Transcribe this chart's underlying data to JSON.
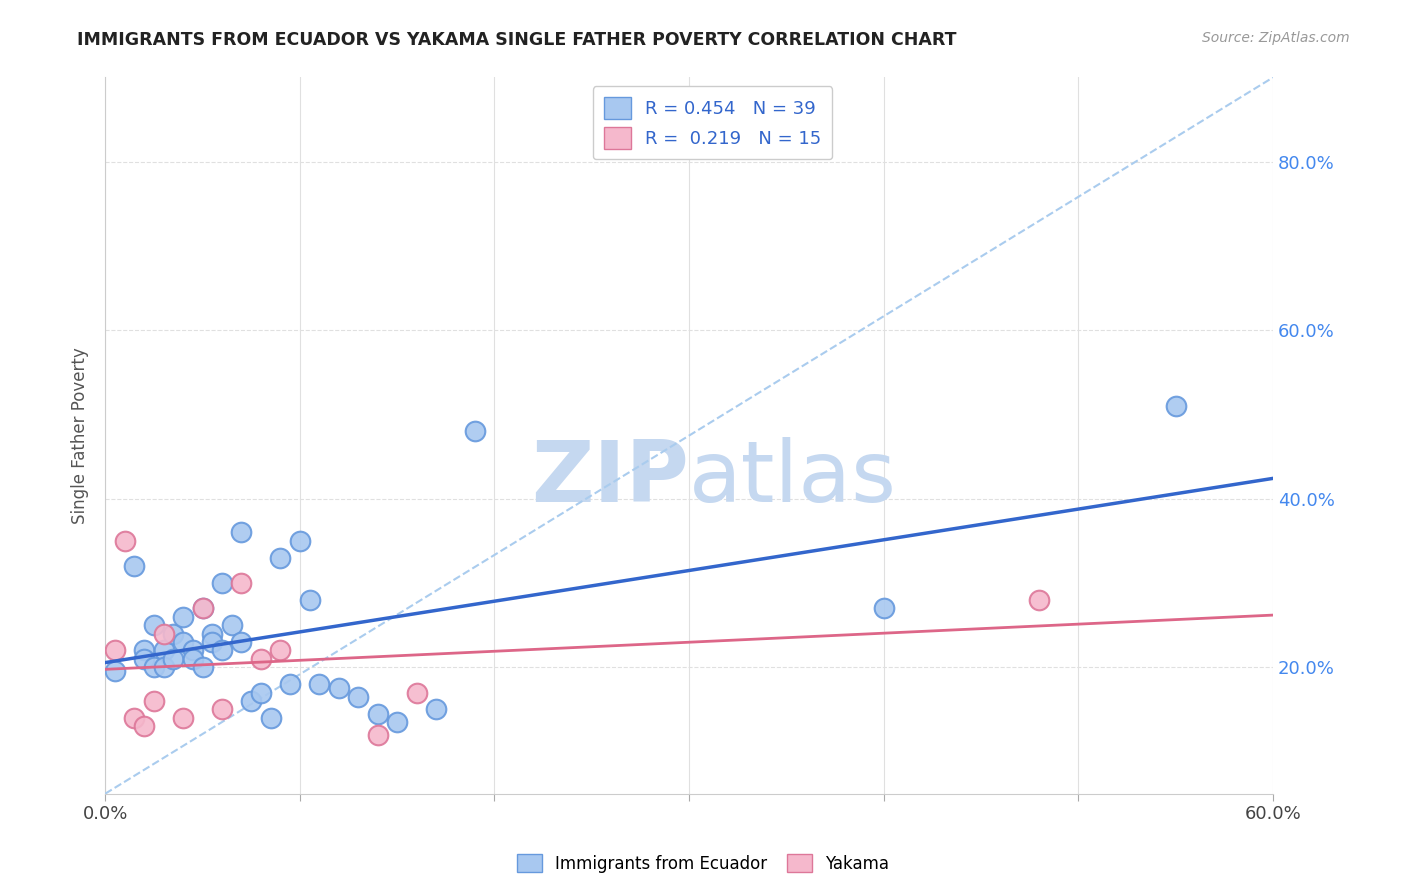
{
  "title": "IMMIGRANTS FROM ECUADOR VS YAKAMA SINGLE FATHER POVERTY CORRELATION CHART",
  "source": "Source: ZipAtlas.com",
  "legend_label1": "Immigrants from Ecuador",
  "legend_label2": "Yakama",
  "R1": "0.454",
  "N1": "39",
  "R2": "0.219",
  "N2": "15",
  "color_blue": "#a8c8f0",
  "color_blue_edge": "#6699dd",
  "color_blue_line": "#3366cc",
  "color_pink": "#f5b8cc",
  "color_pink_edge": "#dd7799",
  "color_pink_line": "#dd6688",
  "color_dashed": "#aaccee",
  "watermark_color": "#c5d8f0",
  "blue_x": [
    0.5,
    1.5,
    2.0,
    2.0,
    2.5,
    2.5,
    3.0,
    3.0,
    3.5,
    3.5,
    4.0,
    4.0,
    4.5,
    4.5,
    5.0,
    5.0,
    5.5,
    5.5,
    6.0,
    6.0,
    6.5,
    7.0,
    7.0,
    7.5,
    8.0,
    8.5,
    9.0,
    9.5,
    10.0,
    10.5,
    11.0,
    12.0,
    13.0,
    14.0,
    15.0,
    17.0,
    19.0,
    40.0,
    55.0
  ],
  "blue_y": [
    19.5,
    32.0,
    22.0,
    21.0,
    20.0,
    25.0,
    22.0,
    20.0,
    24.0,
    21.0,
    26.0,
    23.0,
    22.0,
    21.0,
    20.0,
    27.0,
    24.0,
    23.0,
    22.0,
    30.0,
    25.0,
    23.0,
    36.0,
    16.0,
    17.0,
    14.0,
    33.0,
    18.0,
    35.0,
    28.0,
    18.0,
    17.5,
    16.5,
    14.5,
    13.5,
    15.0,
    48.0,
    27.0,
    51.0
  ],
  "pink_x": [
    0.5,
    1.0,
    1.5,
    2.0,
    2.5,
    3.0,
    4.0,
    5.0,
    6.0,
    7.0,
    8.0,
    9.0,
    14.0,
    16.0,
    48.0
  ],
  "pink_y": [
    22.0,
    35.0,
    14.0,
    13.0,
    16.0,
    24.0,
    14.0,
    27.0,
    15.0,
    30.0,
    21.0,
    22.0,
    12.0,
    17.0,
    28.0
  ],
  "xlim": [
    0.0,
    60.0
  ],
  "ylim": [
    5.0,
    90.0
  ],
  "yticks": [
    20.0,
    40.0,
    60.0,
    80.0
  ],
  "xtick_left": "0.0%",
  "xtick_right": "60.0%",
  "grid_color": "#e0e0e0",
  "grid_style": "--",
  "background_color": "#ffffff"
}
